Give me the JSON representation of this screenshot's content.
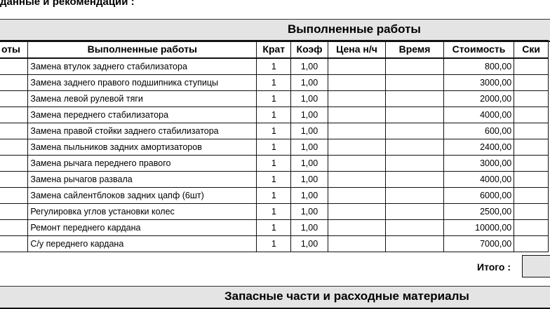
{
  "heading": "данные и рекомендации :",
  "section_title": "Выполненные работы",
  "columns": [
    "оты",
    "Выполненные работы",
    "Крат",
    "Коэф",
    "Цена н/ч",
    "Время",
    "Стоимость",
    "Ски"
  ],
  "rows": [
    {
      "name": "Замена втулок заднего стабилизатора",
      "krat": "1",
      "koef": "1,00",
      "cost": "800,00"
    },
    {
      "name": "Замена заднего правого подшипника ступицы",
      "krat": "1",
      "koef": "1,00",
      "cost": "3000,00"
    },
    {
      "name": "Замена левой рулевой тяги",
      "krat": "1",
      "koef": "1,00",
      "cost": "2000,00"
    },
    {
      "name": "Замена переднего стабилизатора",
      "krat": "1",
      "koef": "1,00",
      "cost": "4000,00"
    },
    {
      "name": "Замена правой стойки заднего стабилизатора",
      "krat": "1",
      "koef": "1,00",
      "cost": "600,00"
    },
    {
      "name": "Замена пыльников задних амортизаторов",
      "krat": "1",
      "koef": "1,00",
      "cost": "2400,00"
    },
    {
      "name": "Замена рычага переднего правого",
      "krat": "1",
      "koef": "1,00",
      "cost": "3000,00"
    },
    {
      "name": "Замена рычагов развала",
      "krat": "1",
      "koef": "1,00",
      "cost": "4000,00"
    },
    {
      "name": "Замена сайлентблоков задних цапф (6шт)",
      "krat": "1",
      "koef": "1,00",
      "cost": "6000,00"
    },
    {
      "name": "Регулировка углов установки колес",
      "krat": "1",
      "koef": "1,00",
      "cost": "2500,00"
    },
    {
      "name": "Ремонт переднего кардана",
      "krat": "1",
      "koef": "1,00",
      "cost": "10000,00"
    },
    {
      "name": "С/у переднего кардана",
      "krat": "1",
      "koef": "1,00",
      "cost": "7000,00"
    }
  ],
  "total_label": "Итого :",
  "parts_title": "Запасные части и расходные материалы"
}
